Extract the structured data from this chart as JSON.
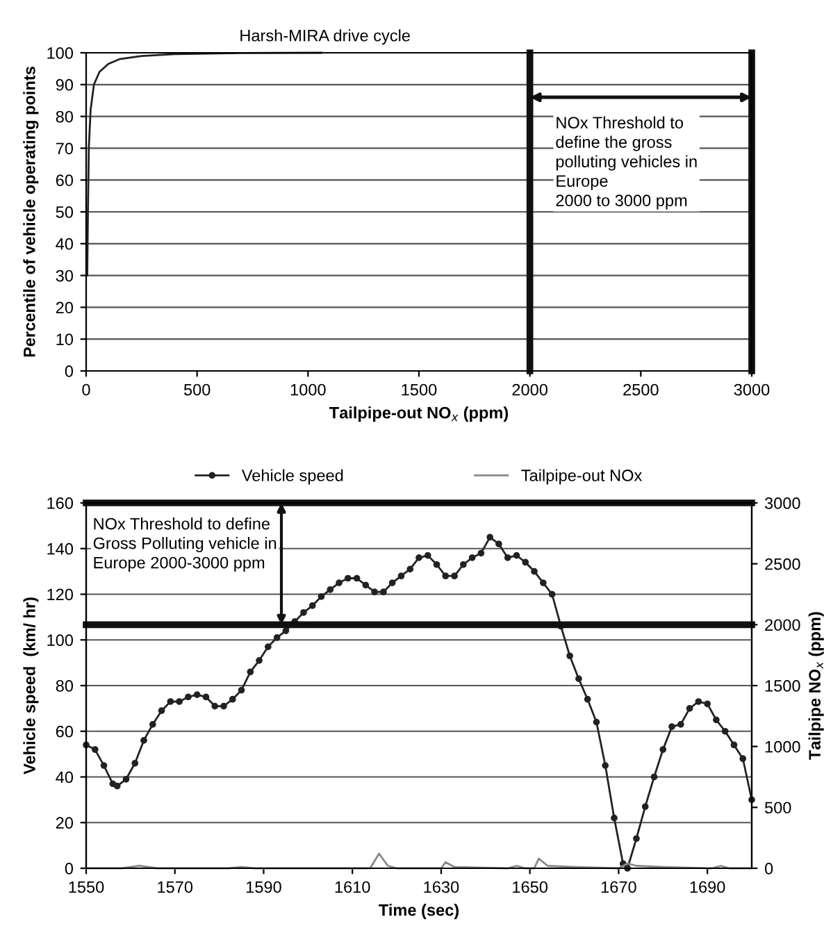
{
  "chart_data": [
    {
      "type": "line",
      "title": "Harsh-MIRA drive cycle",
      "xlabel": "Tailpipe-out NO$_{x}$ (ppm)",
      "ylabel": "Percentile of vehicle operating points",
      "xlim": [
        0,
        3000
      ],
      "xticks": [
        0,
        500,
        1000,
        1500,
        2000,
        2500,
        3000
      ],
      "ylim": [
        0,
        100
      ],
      "yticks": [
        0,
        10,
        20,
        30,
        40,
        50,
        60,
        70,
        80,
        90,
        100
      ],
      "grid": "y",
      "legend": false,
      "series": [
        {
          "color": "#222222",
          "x": [
            5,
            8,
            12,
            20,
            35,
            60,
            100,
            150,
            250,
            400,
            700,
            1060
          ],
          "values": [
            30,
            50,
            70,
            82,
            90,
            94,
            96.5,
            98,
            99,
            99.6,
            99.9,
            100
          ]
        }
      ],
      "ref_lines": [
        {
          "axis": "x",
          "value": 2000,
          "color": "#111111"
        },
        {
          "axis": "x",
          "value": 3000,
          "color": "#111111"
        }
      ],
      "annotations": [
        "NOx Threshold to\ndefine the gross\npolluting vehicles in\nEurope\n2000 to 3000 ppm"
      ]
    },
    {
      "type": "line",
      "xlabel": "Time (sec)",
      "ylabel": "Vehicle speed  (km/ hr)",
      "y2label": "Tailpipe NO$_{x}$ (ppm)",
      "xlim": [
        1550,
        1700
      ],
      "xticks": [
        1550,
        1570,
        1590,
        1610,
        1630,
        1650,
        1670,
        1690
      ],
      "ylim": [
        0,
        160
      ],
      "yticks": [
        0,
        20,
        40,
        60,
        80,
        100,
        120,
        140,
        160
      ],
      "y2lim": [
        0,
        3000
      ],
      "y2ticks": [
        0,
        500,
        1000,
        1500,
        2000,
        2500,
        3000
      ],
      "grid": "y",
      "legend": "top",
      "series": [
        {
          "name": "Vehicle speed",
          "color": "#222222",
          "marker": "circle",
          "x": [
            1550,
            1552,
            1554,
            1556,
            1557,
            1559,
            1561,
            1563,
            1565,
            1567,
            1569,
            1571,
            1573,
            1575,
            1577,
            1579,
            1581,
            1583,
            1585,
            1587,
            1589,
            1591,
            1593,
            1595,
            1597,
            1599,
            1601,
            1603,
            1605,
            1607,
            1609,
            1611,
            1613,
            1615,
            1617,
            1619,
            1621,
            1623,
            1625,
            1627,
            1629,
            1631,
            1633,
            1635,
            1637,
            1639,
            1641,
            1643,
            1645,
            1647,
            1649,
            1651,
            1653,
            1655,
            1657,
            1659,
            1661,
            1663,
            1665,
            1667,
            1669,
            1671,
            1672,
            1674,
            1676,
            1678,
            1680,
            1682,
            1684,
            1686,
            1688,
            1690,
            1692,
            1694,
            1696,
            1698,
            1700
          ],
          "values": [
            54,
            52,
            45,
            37,
            36,
            39,
            46,
            56,
            63,
            69,
            73,
            73,
            75,
            76,
            75,
            71,
            71,
            74,
            78,
            86,
            91,
            97,
            101,
            104,
            108,
            112,
            115,
            119,
            122,
            125,
            127,
            127,
            124,
            121,
            121,
            125,
            128,
            131,
            136,
            137,
            133,
            128,
            128,
            133,
            136,
            138,
            145,
            142,
            136,
            137,
            134,
            130,
            125,
            120,
            106,
            93,
            83,
            74,
            64,
            45,
            22,
            2,
            0,
            13,
            27,
            40,
            52,
            62,
            63,
            70,
            73,
            72,
            65,
            60,
            54,
            48,
            30
          ]
        },
        {
          "name": "Tailpipe-out NOx",
          "color": "#888888",
          "axis": "y2",
          "x": [
            1550,
            1558,
            1562,
            1566,
            1582,
            1585,
            1588,
            1614,
            1616,
            1618,
            1620,
            1630,
            1631,
            1633,
            1645,
            1647,
            1649,
            1651,
            1652,
            1654,
            1660,
            1670,
            1672,
            1674,
            1680,
            1691,
            1693,
            1695,
            1700
          ],
          "values": [
            0,
            0,
            20,
            0,
            0,
            10,
            0,
            0,
            120,
            20,
            0,
            0,
            50,
            10,
            0,
            20,
            0,
            0,
            80,
            20,
            10,
            0,
            40,
            20,
            10,
            0,
            20,
            0,
            0
          ]
        }
      ],
      "ref_lines": [
        {
          "axis": "y2",
          "value": 2000,
          "color": "#111111"
        },
        {
          "axis": "y2",
          "value": 3000,
          "color": "#111111"
        }
      ],
      "annotations": [
        {
          "text": "NOx Threshold to define\nGross Polluting vehicle in\nEurope 2000-3000 ppm",
          "x": 1594,
          "y": 160
        }
      ]
    }
  ]
}
